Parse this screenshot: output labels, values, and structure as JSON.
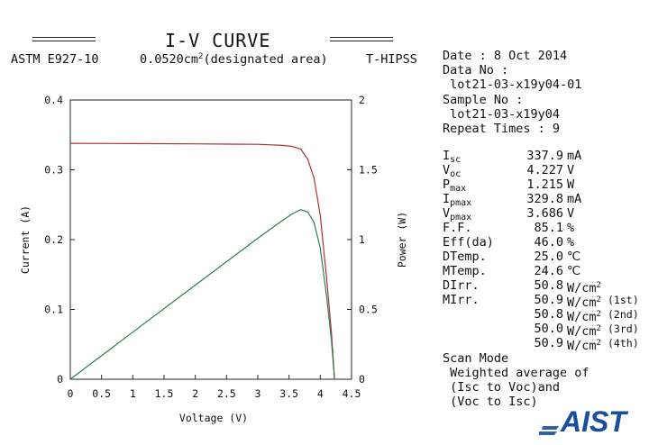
{
  "header": {
    "title": "I-V CURVE",
    "standard": "ASTM E927-10",
    "area_value": "0.0520cm",
    "area_exp": "2",
    "area_note": "(designated area)",
    "lab_code": "T-HIPSS"
  },
  "info": {
    "date_line": "Date :  8 Oct 2014",
    "data_no_label": "Data No :",
    "data_no": " lot21-03-x19y04-01",
    "sample_no_label": "Sample No :",
    "sample_no": " lot21-03-x19y04",
    "repeat_line": "Repeat Times : 9"
  },
  "params": [
    {
      "label": "I",
      "sub": "sc",
      "value": "337.9",
      "unit": "mA",
      "sup": "",
      "note": ""
    },
    {
      "label": "V",
      "sub": "oc",
      "value": "4.227",
      "unit": "V",
      "sup": "",
      "note": ""
    },
    {
      "label": "P",
      "sub": "max",
      "value": "1.215",
      "unit": "W",
      "sup": "",
      "note": ""
    },
    {
      "label": "I",
      "sub": "pmax",
      "value": "329.8",
      "unit": "mA",
      "sup": "",
      "note": ""
    },
    {
      "label": "V",
      "sub": "pmax",
      "value": "3.686",
      "unit": "V",
      "sup": "",
      "note": ""
    },
    {
      "label": "F.F.",
      "sub": "",
      "value": "85.1",
      "unit": "%",
      "sup": "",
      "note": ""
    },
    {
      "label": "Eff(da)",
      "sub": "",
      "value": "46.0",
      "unit": "%",
      "sup": "",
      "note": ""
    },
    {
      "label": "DTemp.",
      "sub": "",
      "value": "25.0",
      "unit": "℃",
      "sup": "",
      "note": ""
    },
    {
      "label": "MTemp.",
      "sub": "",
      "value": "24.6",
      "unit": "℃",
      "sup": "",
      "note": ""
    },
    {
      "label": "DIrr.",
      "sub": "",
      "value": "50.8",
      "unit": "W/cm",
      "sup": "2",
      "note": ""
    },
    {
      "label": "MIrr.",
      "sub": "",
      "value": "50.9",
      "unit": "W/cm",
      "sup": "2",
      "note": "(1st)"
    },
    {
      "label": "",
      "sub": "",
      "value": "50.8",
      "unit": "W/cm",
      "sup": "2",
      "note": "(2nd)"
    },
    {
      "label": "",
      "sub": "",
      "value": "50.0",
      "unit": "W/cm",
      "sup": "2",
      "note": "(3rd)"
    },
    {
      "label": "",
      "sub": "",
      "value": "50.9",
      "unit": "W/cm",
      "sup": "2",
      "note": "(4th)"
    }
  ],
  "scan": {
    "label": "Scan Mode",
    "line1": " Weighted average of",
    "line2": " (Isc to Voc)and",
    "line3": " (Voc to Isc)"
  },
  "logo": {
    "text": "AIST",
    "color": "#1a4fa0"
  },
  "chart_data": {
    "type": "line",
    "title": "I-V CURVE",
    "xlabel": "Voltage (V)",
    "ylabel": "Current (A)",
    "y2label": "Power (W)",
    "xlim": [
      0,
      4.5
    ],
    "ylim": [
      0,
      0.4
    ],
    "y2lim": [
      0,
      2
    ],
    "xticks": [
      "0",
      "0.5",
      "1",
      "1.5",
      "2",
      "2.5",
      "3",
      "3.5",
      "4",
      "4.5"
    ],
    "yticks": [
      "0",
      "0.1",
      "0.2",
      "0.3",
      "0.4"
    ],
    "y2ticks": [
      "0",
      "0.5",
      "1",
      "1.5",
      "2"
    ],
    "grid": false,
    "series": [
      {
        "name": "Current",
        "axis": "left",
        "color": "#b03038",
        "x": [
          0,
          1.0,
          2.0,
          3.0,
          3.4,
          3.55,
          3.686,
          3.8,
          3.9,
          4.0,
          4.1,
          4.18,
          4.227
        ],
        "y": [
          0.3379,
          0.3375,
          0.3371,
          0.3365,
          0.335,
          0.3335,
          0.3298,
          0.315,
          0.288,
          0.235,
          0.145,
          0.065,
          0.0
        ]
      },
      {
        "name": "Power",
        "axis": "right",
        "color": "#2e7d4f",
        "x": [
          0,
          1.0,
          2.0,
          3.0,
          3.4,
          3.55,
          3.686,
          3.8,
          3.9,
          4.0,
          4.1,
          4.18,
          4.227
        ],
        "y": [
          0.0,
          0.3375,
          0.6742,
          1.0095,
          1.139,
          1.184,
          1.215,
          1.197,
          1.123,
          0.94,
          0.595,
          0.272,
          0.0
        ]
      }
    ]
  }
}
